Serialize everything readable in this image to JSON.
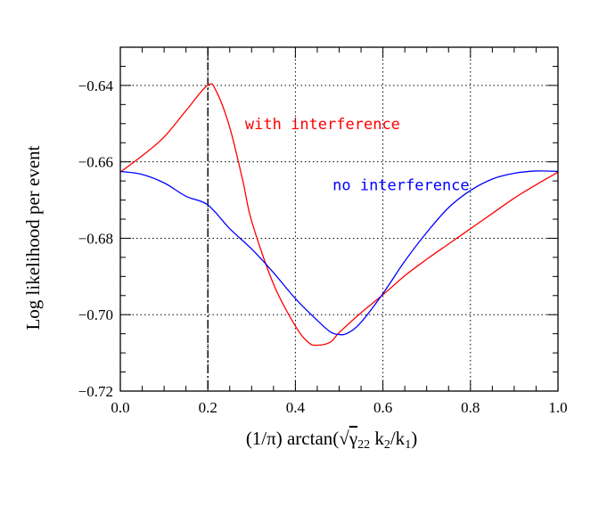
{
  "chart_data": {
    "type": "line",
    "xlabel_parts": {
      "prefix": "(1/π)  arctan(",
      "sqrt": "√",
      "gamma": "γ",
      "gamma_sub": "22",
      "k2": " k",
      "k2_sub": "2",
      "slash": "/k",
      "k1_sub": "1",
      "suffix": ")"
    },
    "ylabel": "Log likelihood per event",
    "xlim": [
      0.0,
      1.0
    ],
    "ylim": [
      -0.72,
      -0.63
    ],
    "xticks": [
      0.0,
      0.2,
      0.4,
      0.6,
      0.8,
      1.0
    ],
    "xtick_labels": [
      "0.0",
      "0.2",
      "0.4",
      "0.6",
      "0.8",
      "1.0"
    ],
    "yticks": [
      -0.72,
      -0.7,
      -0.68,
      -0.66,
      -0.64
    ],
    "ytick_labels": [
      "−0.72",
      "−0.70",
      "−0.68",
      "−0.66",
      "−0.64"
    ],
    "grid": true,
    "vline_x": 0.2,
    "series": [
      {
        "name": "with interference",
        "color": "#ff0000",
        "x": [
          0.0,
          0.05,
          0.1,
          0.15,
          0.2,
          0.22,
          0.25,
          0.28,
          0.3,
          0.35,
          0.4,
          0.43,
          0.45,
          0.48,
          0.5,
          0.55,
          0.6,
          0.65,
          0.7,
          0.75,
          0.8,
          0.85,
          0.9,
          0.95,
          1.0
        ],
        "y": [
          -0.6627,
          -0.6584,
          -0.6535,
          -0.6466,
          -0.6399,
          -0.6417,
          -0.651,
          -0.665,
          -0.6755,
          -0.692,
          -0.703,
          -0.7073,
          -0.708,
          -0.7072,
          -0.7047,
          -0.6995,
          -0.6948,
          -0.6898,
          -0.6855,
          -0.6815,
          -0.6775,
          -0.6735,
          -0.6695,
          -0.666,
          -0.6627
        ]
      },
      {
        "name": "no interference",
        "color": "#0000ff",
        "x": [
          0.0,
          0.05,
          0.1,
          0.15,
          0.2,
          0.25,
          0.3,
          0.35,
          0.4,
          0.45,
          0.48,
          0.5,
          0.52,
          0.55,
          0.6,
          0.65,
          0.7,
          0.75,
          0.8,
          0.85,
          0.9,
          0.95,
          1.0
        ],
        "y": [
          -0.6625,
          -0.6633,
          -0.6655,
          -0.669,
          -0.6713,
          -0.6775,
          -0.6828,
          -0.689,
          -0.6958,
          -0.7015,
          -0.7045,
          -0.7052,
          -0.7048,
          -0.702,
          -0.6945,
          -0.686,
          -0.6785,
          -0.672,
          -0.6675,
          -0.6645,
          -0.663,
          -0.6624,
          -0.6625
        ]
      }
    ],
    "annotations": [
      {
        "text": "with interference",
        "color": "#ff0000",
        "x": 0.285,
        "y": -0.6515
      },
      {
        "text": "no interference",
        "color": "#0000ff",
        "x": 0.485,
        "y": -0.6674
      }
    ]
  }
}
